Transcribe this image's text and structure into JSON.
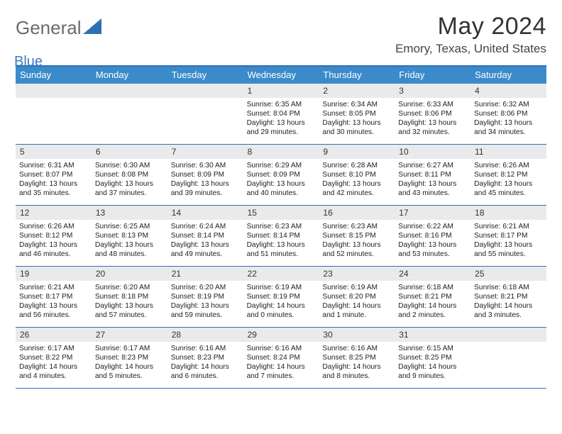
{
  "brand": {
    "general": "General",
    "blue": "Blue"
  },
  "title": "May 2024",
  "location": "Emory, Texas, United States",
  "weekdays": [
    "Sunday",
    "Monday",
    "Tuesday",
    "Wednesday",
    "Thursday",
    "Friday",
    "Saturday"
  ],
  "colors": {
    "accent": "#3b8bca",
    "rule": "#2f70b5",
    "daynum_bg": "#e9eaeb"
  },
  "layout": {
    "cols": 7,
    "rows": 5,
    "blank_leading": 3
  },
  "days": [
    {
      "n": "1",
      "sunrise": "6:35 AM",
      "sunset": "8:04 PM",
      "daylight": "13 hours and 29 minutes."
    },
    {
      "n": "2",
      "sunrise": "6:34 AM",
      "sunset": "8:05 PM",
      "daylight": "13 hours and 30 minutes."
    },
    {
      "n": "3",
      "sunrise": "6:33 AM",
      "sunset": "8:06 PM",
      "daylight": "13 hours and 32 minutes."
    },
    {
      "n": "4",
      "sunrise": "6:32 AM",
      "sunset": "8:06 PM",
      "daylight": "13 hours and 34 minutes."
    },
    {
      "n": "5",
      "sunrise": "6:31 AM",
      "sunset": "8:07 PM",
      "daylight": "13 hours and 35 minutes."
    },
    {
      "n": "6",
      "sunrise": "6:30 AM",
      "sunset": "8:08 PM",
      "daylight": "13 hours and 37 minutes."
    },
    {
      "n": "7",
      "sunrise": "6:30 AM",
      "sunset": "8:09 PM",
      "daylight": "13 hours and 39 minutes."
    },
    {
      "n": "8",
      "sunrise": "6:29 AM",
      "sunset": "8:09 PM",
      "daylight": "13 hours and 40 minutes."
    },
    {
      "n": "9",
      "sunrise": "6:28 AM",
      "sunset": "8:10 PM",
      "daylight": "13 hours and 42 minutes."
    },
    {
      "n": "10",
      "sunrise": "6:27 AM",
      "sunset": "8:11 PM",
      "daylight": "13 hours and 43 minutes."
    },
    {
      "n": "11",
      "sunrise": "6:26 AM",
      "sunset": "8:12 PM",
      "daylight": "13 hours and 45 minutes."
    },
    {
      "n": "12",
      "sunrise": "6:26 AM",
      "sunset": "8:12 PM",
      "daylight": "13 hours and 46 minutes."
    },
    {
      "n": "13",
      "sunrise": "6:25 AM",
      "sunset": "8:13 PM",
      "daylight": "13 hours and 48 minutes."
    },
    {
      "n": "14",
      "sunrise": "6:24 AM",
      "sunset": "8:14 PM",
      "daylight": "13 hours and 49 minutes."
    },
    {
      "n": "15",
      "sunrise": "6:23 AM",
      "sunset": "8:14 PM",
      "daylight": "13 hours and 51 minutes."
    },
    {
      "n": "16",
      "sunrise": "6:23 AM",
      "sunset": "8:15 PM",
      "daylight": "13 hours and 52 minutes."
    },
    {
      "n": "17",
      "sunrise": "6:22 AM",
      "sunset": "8:16 PM",
      "daylight": "13 hours and 53 minutes."
    },
    {
      "n": "18",
      "sunrise": "6:21 AM",
      "sunset": "8:17 PM",
      "daylight": "13 hours and 55 minutes."
    },
    {
      "n": "19",
      "sunrise": "6:21 AM",
      "sunset": "8:17 PM",
      "daylight": "13 hours and 56 minutes."
    },
    {
      "n": "20",
      "sunrise": "6:20 AM",
      "sunset": "8:18 PM",
      "daylight": "13 hours and 57 minutes."
    },
    {
      "n": "21",
      "sunrise": "6:20 AM",
      "sunset": "8:19 PM",
      "daylight": "13 hours and 59 minutes."
    },
    {
      "n": "22",
      "sunrise": "6:19 AM",
      "sunset": "8:19 PM",
      "daylight": "14 hours and 0 minutes."
    },
    {
      "n": "23",
      "sunrise": "6:19 AM",
      "sunset": "8:20 PM",
      "daylight": "14 hours and 1 minute."
    },
    {
      "n": "24",
      "sunrise": "6:18 AM",
      "sunset": "8:21 PM",
      "daylight": "14 hours and 2 minutes."
    },
    {
      "n": "25",
      "sunrise": "6:18 AM",
      "sunset": "8:21 PM",
      "daylight": "14 hours and 3 minutes."
    },
    {
      "n": "26",
      "sunrise": "6:17 AM",
      "sunset": "8:22 PM",
      "daylight": "14 hours and 4 minutes."
    },
    {
      "n": "27",
      "sunrise": "6:17 AM",
      "sunset": "8:23 PM",
      "daylight": "14 hours and 5 minutes."
    },
    {
      "n": "28",
      "sunrise": "6:16 AM",
      "sunset": "8:23 PM",
      "daylight": "14 hours and 6 minutes."
    },
    {
      "n": "29",
      "sunrise": "6:16 AM",
      "sunset": "8:24 PM",
      "daylight": "14 hours and 7 minutes."
    },
    {
      "n": "30",
      "sunrise": "6:16 AM",
      "sunset": "8:25 PM",
      "daylight": "14 hours and 8 minutes."
    },
    {
      "n": "31",
      "sunrise": "6:15 AM",
      "sunset": "8:25 PM",
      "daylight": "14 hours and 9 minutes."
    }
  ],
  "labels": {
    "sunrise": "Sunrise:",
    "sunset": "Sunset:",
    "daylight": "Daylight:"
  }
}
